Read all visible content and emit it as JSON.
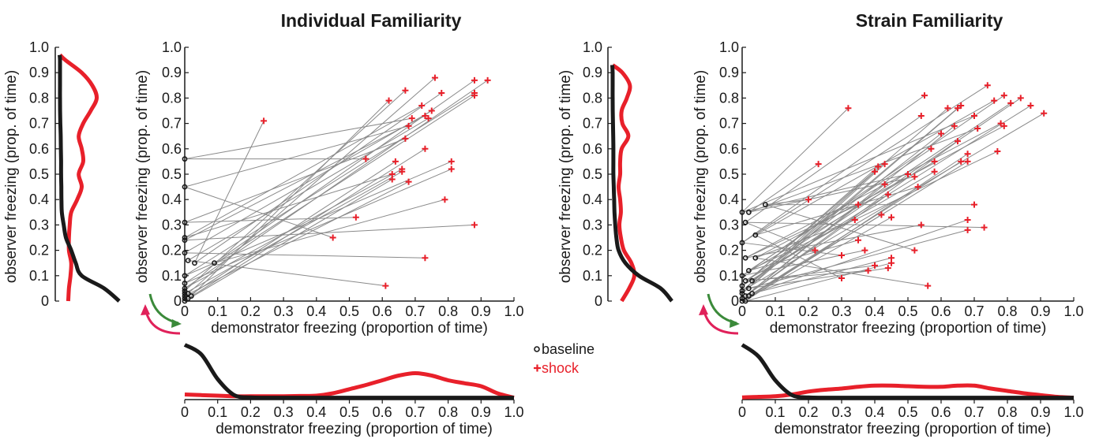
{
  "colors": {
    "baseline": "#1a1a1a",
    "shock": "#e8202a",
    "line": "#8a8a8a",
    "arrow_green": "#3b8a3a",
    "arrow_red": "#e0215a"
  },
  "legend": {
    "baseline": "baseline",
    "shock": "shock",
    "baseline_marker": "o",
    "shock_marker": "+"
  },
  "chart_data": [
    {
      "type": "scatter",
      "title": "Individual Familiarity",
      "xlabel": "demonstrator freezing (proportion of time)",
      "ylabel": "observer freezing (prop. of time)",
      "xlim": [
        0,
        1
      ],
      "ylim": [
        0,
        1
      ],
      "xticks": [
        "0",
        "0.1",
        "0.2",
        "0.3",
        "0.4",
        "0.5",
        "0.6",
        "0.7",
        "0.8",
        "0.9",
        "1.0"
      ],
      "yticks": [
        "0",
        "0.1",
        "0.2",
        "0.3",
        "0.4",
        "0.5",
        "0.6",
        "0.7",
        "0.8",
        "0.9",
        "1.0"
      ],
      "series": [
        {
          "name": "baseline",
          "points": [
            [
              0,
              0.56
            ],
            [
              0,
              0.45
            ],
            [
              0,
              0.31
            ],
            [
              0,
              0.25
            ],
            [
              0,
              0.24
            ],
            [
              0,
              0.19
            ],
            [
              0.01,
              0.16
            ],
            [
              0.03,
              0.15
            ],
            [
              0.09,
              0.15
            ],
            [
              0,
              0.1
            ],
            [
              0,
              0.07
            ],
            [
              0,
              0.05
            ],
            [
              0,
              0.03
            ],
            [
              0,
              0.02
            ],
            [
              0,
              0.01
            ],
            [
              0,
              0.0
            ],
            [
              0.01,
              0.01
            ],
            [
              0.02,
              0.02
            ],
            [
              0,
              0.04
            ],
            [
              0.01,
              0.03
            ]
          ]
        },
        {
          "name": "shock",
          "points": [
            [
              0.55,
              0.56
            ],
            [
              0.45,
              0.25
            ],
            [
              0.52,
              0.33
            ],
            [
              0.63,
              0.5
            ],
            [
              0.88,
              0.3
            ],
            [
              0.73,
              0.17
            ],
            [
              0.61,
              0.06
            ],
            [
              0.24,
              0.71
            ],
            [
              0.79,
              0.4
            ],
            [
              0.81,
              0.55
            ],
            [
              0.81,
              0.52
            ],
            [
              0.66,
              0.52
            ],
            [
              0.66,
              0.51
            ],
            [
              0.68,
              0.47
            ],
            [
              0.64,
              0.55
            ],
            [
              0.63,
              0.48
            ],
            [
              0.73,
              0.6
            ],
            [
              0.62,
              0.79
            ],
            [
              0.67,
              0.83
            ],
            [
              0.76,
              0.88
            ],
            [
              0.69,
              0.72
            ],
            [
              0.68,
              0.69
            ],
            [
              0.67,
              0.64
            ],
            [
              0.72,
              0.77
            ],
            [
              0.73,
              0.73
            ],
            [
              0.75,
              0.75
            ],
            [
              0.74,
              0.72
            ],
            [
              0.78,
              0.82
            ],
            [
              0.88,
              0.87
            ],
            [
              0.88,
              0.82
            ],
            [
              0.88,
              0.81
            ],
            [
              0.92,
              0.87
            ]
          ]
        }
      ],
      "x_marginal": {
        "type": "area",
        "ylim": [
          0,
          10
        ],
        "x": [
          0,
          0.05,
          0.1,
          0.15,
          0.2,
          0.25,
          0.3,
          0.35,
          0.4,
          0.45,
          0.5,
          0.55,
          0.6,
          0.65,
          0.7,
          0.75,
          0.8,
          0.85,
          0.9,
          0.95,
          1.0
        ],
        "baseline": [
          9.0,
          7.4,
          3.2,
          0.5,
          0.1,
          0.05,
          0.05,
          0.05,
          0.05,
          0.05,
          0.05,
          0.05,
          0.05,
          0.05,
          0.05,
          0.05,
          0.05,
          0.05,
          0.05,
          0.05,
          0.05
        ],
        "shock": [
          0.6,
          0.5,
          0.4,
          0.3,
          0.3,
          0.3,
          0.3,
          0.35,
          0.4,
          0.8,
          1.5,
          2.2,
          3.0,
          3.8,
          4.2,
          3.8,
          3.0,
          2.5,
          2.0,
          0.8,
          0.05
        ]
      },
      "y_marginal": {
        "type": "area",
        "xlim": [
          0,
          10
        ],
        "y": [
          0,
          0.05,
          0.1,
          0.15,
          0.2,
          0.25,
          0.3,
          0.35,
          0.4,
          0.45,
          0.5,
          0.55,
          0.6,
          0.65,
          0.7,
          0.75,
          0.8,
          0.85,
          0.9,
          0.95,
          0.97
        ],
        "baseline": [
          8.0,
          6.0,
          3.0,
          2.2,
          1.6,
          0.9,
          0.6,
          0.35,
          0.3,
          0.28,
          0.25,
          0.25,
          0.22,
          0.2,
          0.15,
          0.12,
          0.1,
          0.1,
          0.1,
          0.1,
          0.05
        ],
        "shock": [
          1.2,
          1.3,
          1.5,
          1.6,
          1.3,
          1.3,
          1.4,
          1.6,
          2.4,
          3.0,
          2.6,
          3.2,
          3.0,
          2.6,
          3.2,
          4.2,
          5.0,
          4.4,
          3.0,
          0.8,
          0.1
        ]
      }
    },
    {
      "type": "scatter",
      "title": "Strain Familiarity",
      "xlabel": "demonstrator freezing (proportion of time)",
      "ylabel": "observer freezing (prop. of time)",
      "xlim": [
        0,
        1
      ],
      "ylim": [
        0,
        1
      ],
      "xticks": [
        "0",
        "0.1",
        "0.2",
        "0.3",
        "0.4",
        "0.5",
        "0.6",
        "0.7",
        "0.8",
        "0.9",
        "1.0"
      ],
      "yticks": [
        "0",
        "0.1",
        "0.2",
        "0.3",
        "0.4",
        "0.5",
        "0.6",
        "0.7",
        "0.8",
        "0.9",
        "1.0"
      ],
      "series": [
        {
          "name": "baseline",
          "points": [
            [
              0,
              0.35
            ],
            [
              0.02,
              0.35
            ],
            [
              0.07,
              0.38
            ],
            [
              0.01,
              0.31
            ],
            [
              0,
              0.23
            ],
            [
              0.04,
              0.26
            ],
            [
              0.01,
              0.17
            ],
            [
              0.04,
              0.17
            ],
            [
              0.02,
              0.12
            ],
            [
              0,
              0.1
            ],
            [
              0.01,
              0.08
            ],
            [
              0.03,
              0.08
            ],
            [
              0,
              0.06
            ],
            [
              0,
              0.04
            ],
            [
              0,
              0.03
            ],
            [
              0.01,
              0.02
            ],
            [
              0,
              0.01
            ],
            [
              0.02,
              0.02
            ],
            [
              0,
              0.0
            ],
            [
              0.01,
              0.0
            ],
            [
              0.02,
              0.05
            ],
            [
              0.03,
              0.03
            ]
          ]
        },
        {
          "name": "shock",
          "points": [
            [
              0.32,
              0.76
            ],
            [
              0.23,
              0.54
            ],
            [
              0.2,
              0.4
            ],
            [
              0.22,
              0.2
            ],
            [
              0.3,
              0.18
            ],
            [
              0.3,
              0.09
            ],
            [
              0.35,
              0.38
            ],
            [
              0.34,
              0.32
            ],
            [
              0.35,
              0.24
            ],
            [
              0.37,
              0.2
            ],
            [
              0.38,
              0.12
            ],
            [
              0.4,
              0.14
            ],
            [
              0.41,
              0.53
            ],
            [
              0.4,
              0.51
            ],
            [
              0.43,
              0.54
            ],
            [
              0.43,
              0.46
            ],
            [
              0.44,
              0.42
            ],
            [
              0.42,
              0.34
            ],
            [
              0.45,
              0.33
            ],
            [
              0.45,
              0.15
            ],
            [
              0.44,
              0.13
            ],
            [
              0.45,
              0.17
            ],
            [
              0.5,
              0.5
            ],
            [
              0.52,
              0.49
            ],
            [
              0.52,
              0.2
            ],
            [
              0.55,
              0.81
            ],
            [
              0.54,
              0.73
            ],
            [
              0.53,
              0.45
            ],
            [
              0.54,
              0.3
            ],
            [
              0.56,
              0.06
            ],
            [
              0.57,
              0.6
            ],
            [
              0.58,
              0.55
            ],
            [
              0.58,
              0.51
            ],
            [
              0.6,
              0.66
            ],
            [
              0.62,
              0.76
            ],
            [
              0.65,
              0.76
            ],
            [
              0.66,
              0.77
            ],
            [
              0.64,
              0.69
            ],
            [
              0.65,
              0.63
            ],
            [
              0.66,
              0.55
            ],
            [
              0.68,
              0.55
            ],
            [
              0.68,
              0.58
            ],
            [
              0.68,
              0.28
            ],
            [
              0.68,
              0.32
            ],
            [
              0.7,
              0.73
            ],
            [
              0.71,
              0.68
            ],
            [
              0.7,
              0.38
            ],
            [
              0.73,
              0.29
            ],
            [
              0.74,
              0.85
            ],
            [
              0.76,
              0.79
            ],
            [
              0.78,
              0.7
            ],
            [
              0.79,
              0.69
            ],
            [
              0.77,
              0.59
            ],
            [
              0.79,
              0.81
            ],
            [
              0.81,
              0.78
            ],
            [
              0.84,
              0.8
            ],
            [
              0.87,
              0.77
            ],
            [
              0.91,
              0.74
            ]
          ]
        }
      ],
      "x_marginal": {
        "type": "area",
        "ylim": [
          0,
          10
        ],
        "x": [
          0,
          0.05,
          0.1,
          0.15,
          0.2,
          0.25,
          0.3,
          0.35,
          0.4,
          0.45,
          0.5,
          0.55,
          0.6,
          0.65,
          0.7,
          0.75,
          0.8,
          0.85,
          0.9,
          0.95,
          1.0
        ],
        "baseline": [
          9.0,
          7.0,
          3.0,
          0.5,
          0.1,
          0.05,
          0.05,
          0.05,
          0.05,
          0.05,
          0.05,
          0.05,
          0.05,
          0.05,
          0.05,
          0.05,
          0.05,
          0.05,
          0.05,
          0.05,
          0.05
        ],
        "shock": [
          0.1,
          0.2,
          0.3,
          0.6,
          1.1,
          1.4,
          1.6,
          1.9,
          2.1,
          2.1,
          2.0,
          1.9,
          1.9,
          2.1,
          2.1,
          1.6,
          1.2,
          0.8,
          0.5,
          0.2,
          0.05
        ]
      },
      "y_marginal": {
        "type": "area",
        "xlim": [
          0,
          10
        ],
        "y": [
          0,
          0.05,
          0.1,
          0.15,
          0.2,
          0.25,
          0.3,
          0.35,
          0.4,
          0.45,
          0.5,
          0.55,
          0.6,
          0.65,
          0.7,
          0.75,
          0.8,
          0.85,
          0.9,
          0.93
        ],
        "baseline": [
          8.0,
          6.5,
          3.6,
          1.8,
          0.9,
          0.6,
          0.45,
          0.35,
          0.3,
          0.25,
          0.2,
          0.2,
          0.2,
          0.18,
          0.15,
          0.12,
          0.1,
          0.1,
          0.1,
          0.05
        ],
        "shock": [
          1.3,
          2.3,
          3.0,
          2.6,
          1.6,
          1.2,
          1.0,
          1.2,
          1.1,
          0.9,
          1.1,
          1.1,
          1.3,
          2.2,
          1.4,
          1.3,
          2.0,
          2.4,
          1.4,
          0.1
        ]
      }
    }
  ]
}
